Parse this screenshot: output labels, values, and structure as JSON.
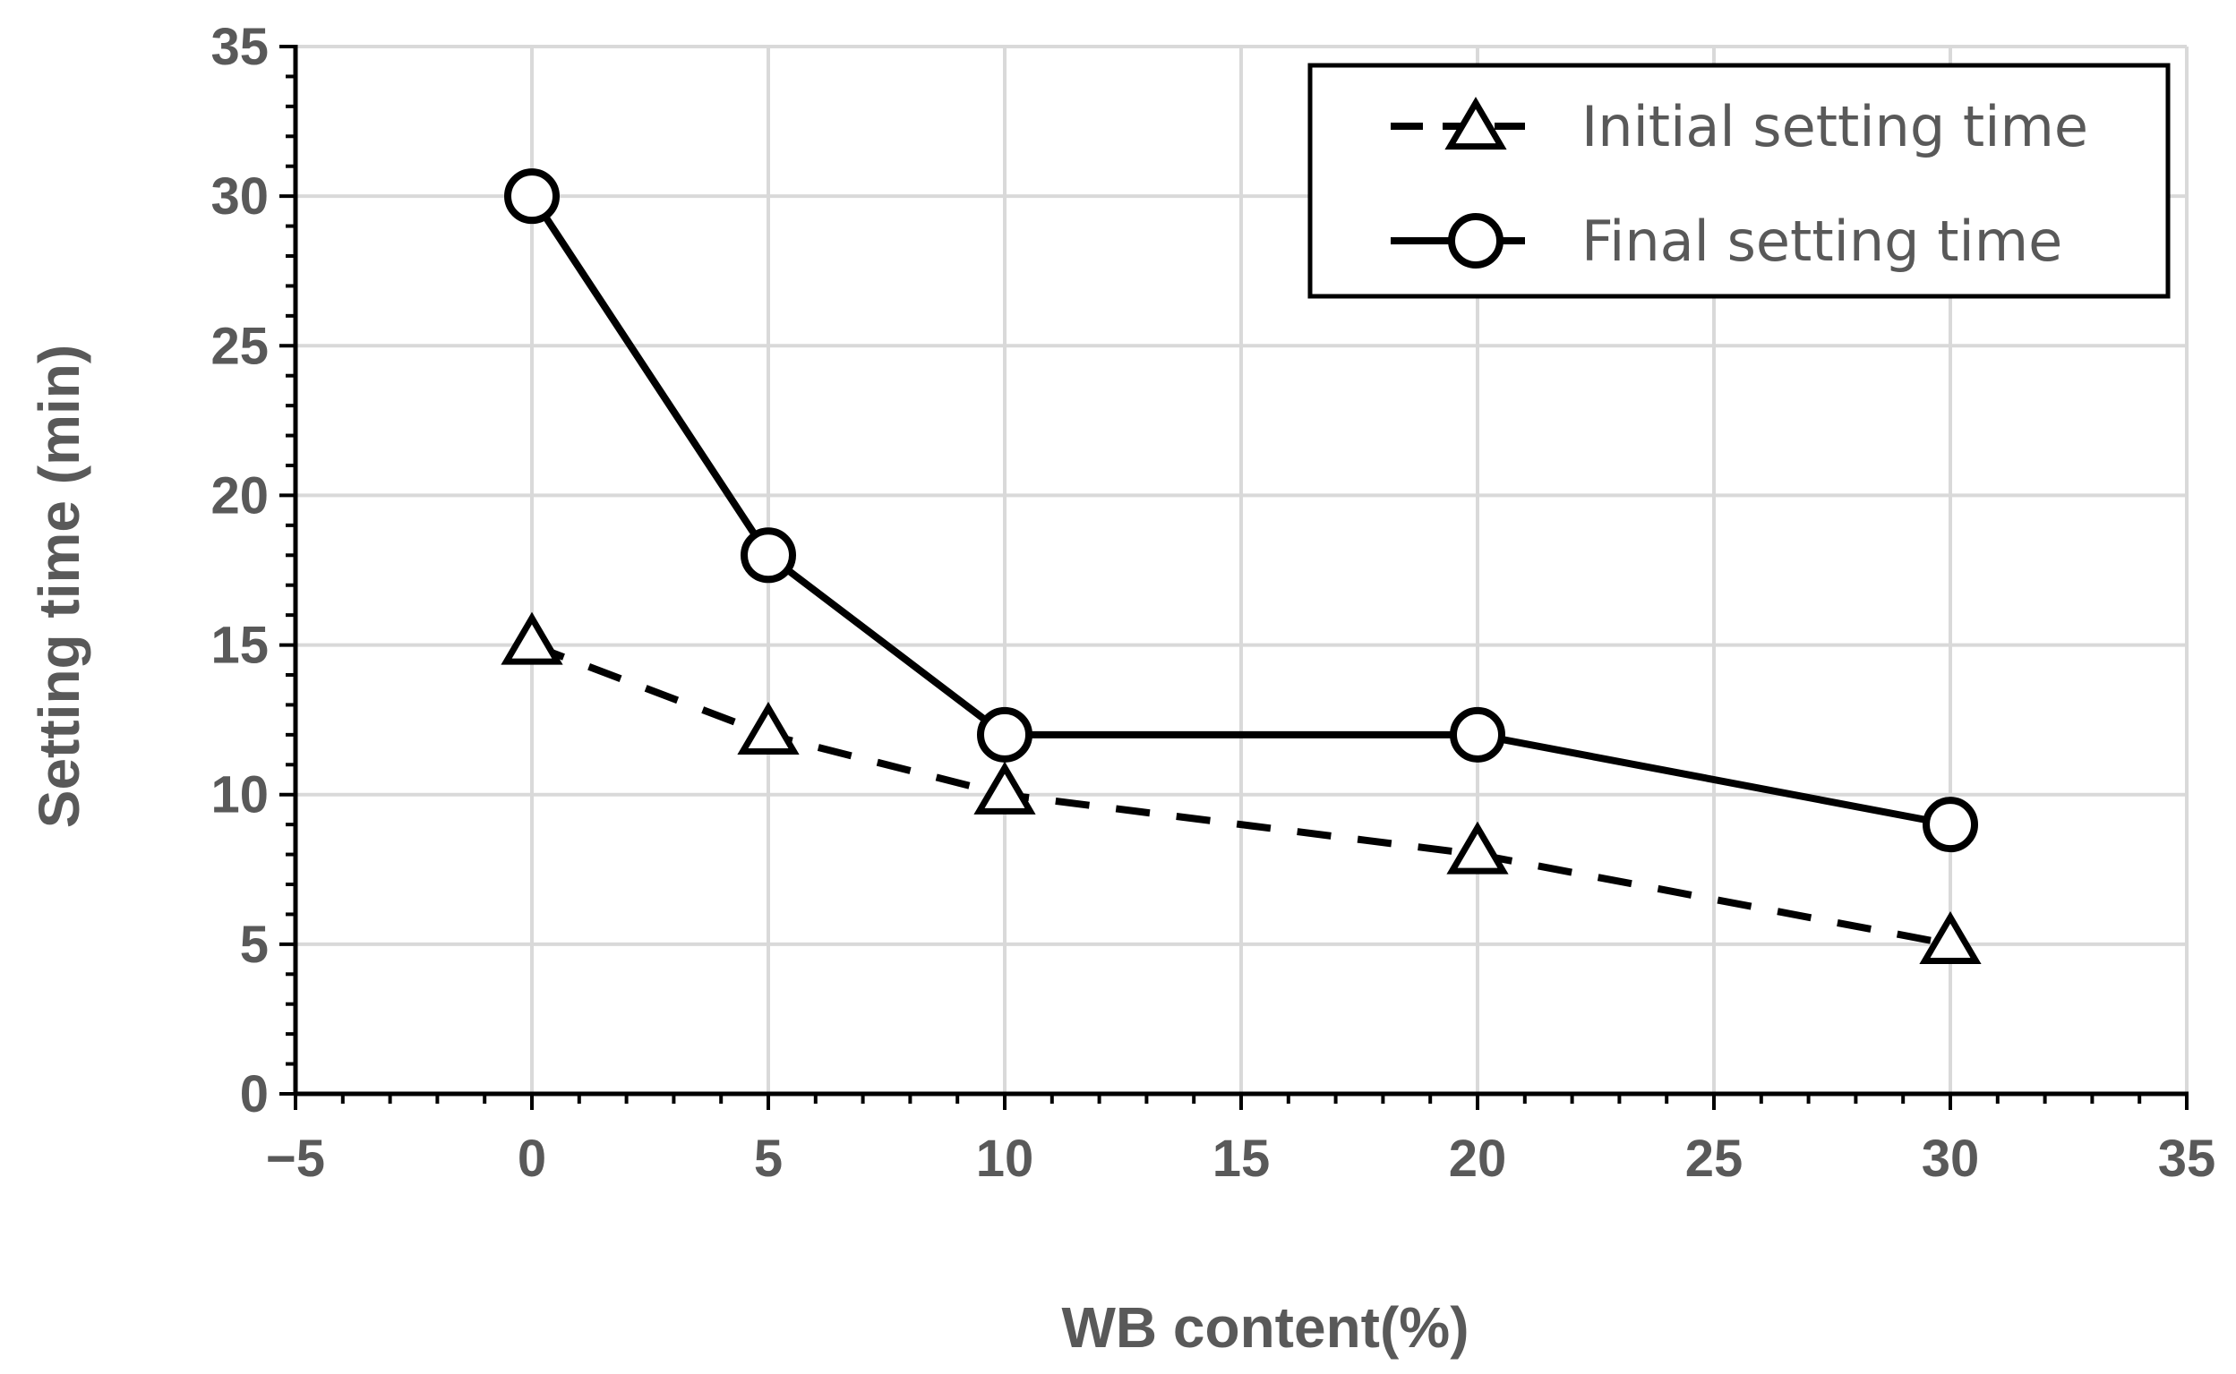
{
  "chart_data": {
    "type": "line",
    "xlabel": "WB content(%)",
    "ylabel": "Setting time  (min)",
    "xlim": [
      -5,
      35
    ],
    "ylim": [
      0,
      35
    ],
    "x_ticks": [
      -5,
      0,
      5,
      10,
      15,
      20,
      25,
      30,
      35
    ],
    "x_tick_labels": [
      "−5",
      "0",
      "5",
      "10",
      "15",
      "20",
      "25",
      "30",
      "35"
    ],
    "y_ticks": [
      0,
      5,
      10,
      15,
      20,
      25,
      30,
      35
    ],
    "y_tick_labels": [
      "0",
      "5",
      "10",
      "15",
      "20",
      "25",
      "30",
      "35"
    ],
    "grid": true,
    "legend_position": "top-right",
    "series": [
      {
        "name": "Initial setting time",
        "line_style": "dashed",
        "marker": "triangle",
        "color": "#000000",
        "x": [
          0,
          5,
          10,
          20,
          30
        ],
        "values": [
          15,
          12,
          10,
          8,
          5
        ]
      },
      {
        "name": "Final setting time",
        "line_style": "solid",
        "marker": "circle",
        "color": "#000000",
        "x": [
          0,
          5,
          10,
          20,
          30
        ],
        "values": [
          30,
          18,
          12,
          12,
          9
        ]
      }
    ]
  }
}
